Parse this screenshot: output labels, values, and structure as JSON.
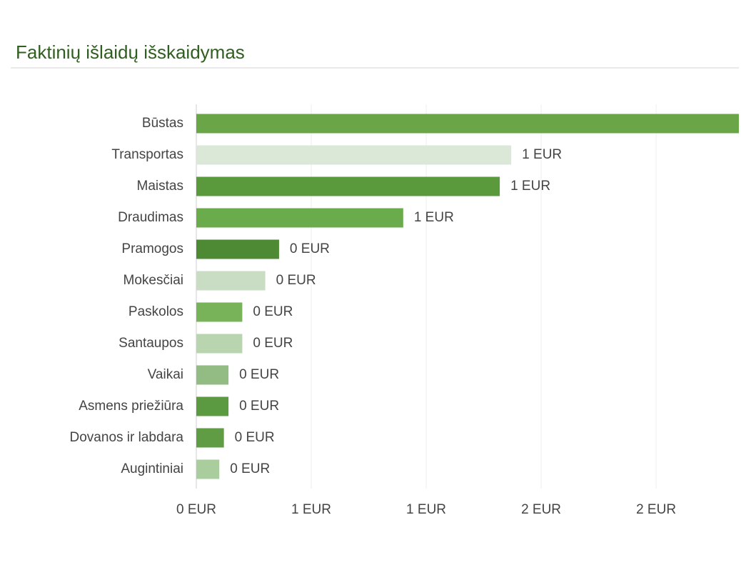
{
  "chart_data": {
    "type": "barh",
    "title": "Faktinių išlaidų išskaidymas",
    "categories": [
      "Būstas",
      "Transportas",
      "Maistas",
      "Draudimas",
      "Pramogos",
      "Mokesčiai",
      "Paskolos",
      "Santaupos",
      "Vaikai",
      "Asmens priežiūra",
      "Dovanos ir labdara",
      "Augintiniai"
    ],
    "values": [
      2.36,
      1.37,
      1.32,
      0.9,
      0.36,
      0.3,
      0.2,
      0.2,
      0.14,
      0.14,
      0.12,
      0.1
    ],
    "value_labels": [
      null,
      "1 EUR",
      "1 EUR",
      "1 EUR",
      "0 EUR",
      "0 EUR",
      "0 EUR",
      "0 EUR",
      "0 EUR",
      "0 EUR",
      "0 EUR",
      "0 EUR"
    ],
    "colors": [
      "#6aa647",
      "#dbe8d8",
      "#5a9a3c",
      "#6aab4c",
      "#4d8a33",
      "#c9ddc5",
      "#78b35a",
      "#b9d5b0",
      "#93bb84",
      "#5b9a40",
      "#5f9c44",
      "#a9cd9c"
    ],
    "xlim": [
      0,
      2.36
    ],
    "xticks": [
      {
        "value": 0,
        "label": "0 EUR"
      },
      {
        "value": 0.5,
        "label": "1 EUR"
      },
      {
        "value": 1,
        "label": "1 EUR"
      },
      {
        "value": 1.5,
        "label": "2 EUR"
      },
      {
        "value": 2,
        "label": "2 EUR"
      }
    ],
    "grid": true
  }
}
